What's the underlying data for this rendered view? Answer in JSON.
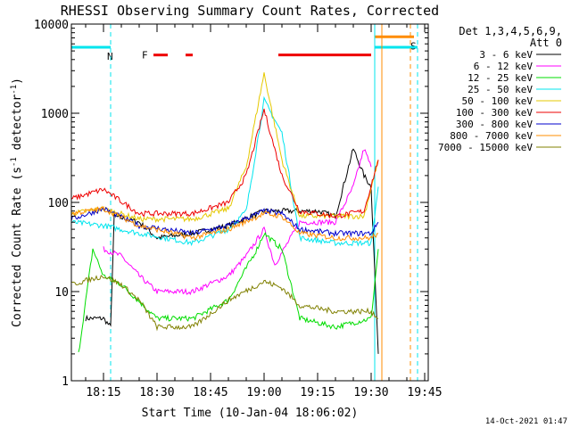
{
  "chart_data": {
    "type": "line",
    "title": "RHESSI Observing Summary Count Rates, Corrected",
    "xlabel": "Start Time (10-Jan-04 18:06:02)",
    "ylabel_main": "Corrected Count Rate (s",
    "ylabel_sup1": "-1",
    "ylabel_mid": " detector",
    "ylabel_sup2": "-1",
    "ylabel_end": ")",
    "y_scale": "log",
    "ylim": [
      1,
      10000
    ],
    "xlim": [
      "18:06",
      "19:46"
    ],
    "x_ticks": [
      "18:15",
      "18:30",
      "18:45",
      "19:00",
      "19:15",
      "19:30",
      "19:45"
    ],
    "y_ticks": [
      "1",
      "10",
      "100",
      "1000",
      "10000"
    ],
    "legend_header": [
      "Det 1,3,4,5,6,9,",
      "Att 0"
    ],
    "legend_position": "right",
    "footer_date": "14-Oct-2021 01:47",
    "flags": [
      {
        "label": "N",
        "color": "#00e5ee",
        "from": "18:06",
        "to": "18:17",
        "level": 5500
      },
      {
        "label": "S",
        "color": "#ff8c00",
        "from": "19:31",
        "to": "19:42",
        "level": 7200
      },
      {
        "label": "",
        "color": "#00e5ee",
        "from": "19:31",
        "to": "19:43",
        "level": 5500
      }
    ],
    "flare_flag": {
      "label": "F",
      "color": "#ee0000",
      "level": 4500,
      "segments": [
        [
          "18:29",
          "18:33"
        ],
        [
          "18:38",
          "18:40"
        ],
        [
          "19:04",
          "19:30"
        ]
      ]
    },
    "vlines": [
      {
        "time": "18:17",
        "color": "#00e5ee",
        "style": "dashed"
      },
      {
        "time": "19:31",
        "color": "#00e5ee",
        "style": "solid"
      },
      {
        "time": "19:33",
        "color": "#ff8c00",
        "style": "solid"
      },
      {
        "time": "19:41",
        "color": "#ff8c00",
        "style": "dashed"
      },
      {
        "time": "19:43",
        "color": "#00e5ee",
        "style": "dashed"
      }
    ],
    "series": [
      {
        "name": "3 - 6 keV",
        "color": "#000000",
        "x": [
          "18:10",
          "18:15",
          "18:17",
          "18:18",
          "18:25",
          "18:30",
          "18:40",
          "18:50",
          "19:00",
          "19:05",
          "19:10",
          "19:15",
          "19:20",
          "19:25",
          "19:28",
          "19:30",
          "19:32"
        ],
        "y": [
          5,
          5,
          4,
          70,
          60,
          40,
          45,
          55,
          80,
          80,
          80,
          80,
          70,
          400,
          200,
          150,
          2
        ]
      },
      {
        "name": "6 - 12 keV",
        "color": "#ff00ff",
        "x": [
          "18:15",
          "18:20",
          "18:25",
          "18:30",
          "18:40",
          "18:50",
          "18:55",
          "19:00",
          "19:03",
          "19:10",
          "19:15",
          "19:20",
          "19:25",
          "19:28",
          "19:30"
        ],
        "y": [
          30,
          25,
          15,
          10,
          10,
          15,
          25,
          50,
          20,
          60,
          60,
          60,
          150,
          400,
          250
        ]
      },
      {
        "name": "12 - 25 keV",
        "color": "#00dd00",
        "x": [
          "18:08",
          "18:12",
          "18:15",
          "18:20",
          "18:30",
          "18:40",
          "18:50",
          "18:58",
          "19:00",
          "19:05",
          "19:10",
          "19:20",
          "19:30",
          "19:32"
        ],
        "y": [
          2,
          30,
          15,
          12,
          5,
          5,
          8,
          30,
          45,
          30,
          5,
          4,
          5,
          30
        ]
      },
      {
        "name": "25 - 50 keV",
        "color": "#00e5ee",
        "x": [
          "18:06",
          "18:15",
          "18:25",
          "18:40",
          "18:50",
          "18:55",
          "19:00",
          "19:05",
          "19:10",
          "19:20",
          "19:30",
          "19:32"
        ],
        "y": [
          60,
          55,
          45,
          35,
          50,
          80,
          1400,
          600,
          40,
          35,
          35,
          150
        ]
      },
      {
        "name": "50 - 100 keV",
        "color": "#e5c800",
        "x": [
          "18:06",
          "18:15",
          "18:25",
          "18:40",
          "18:50",
          "18:55",
          "19:00",
          "19:05",
          "19:10",
          "19:20",
          "19:28",
          "19:32"
        ],
        "y": [
          75,
          85,
          65,
          65,
          85,
          250,
          2800,
          300,
          70,
          70,
          70,
          300
        ]
      },
      {
        "name": "100 - 300 keV",
        "color": "#ee0000",
        "x": [
          "18:06",
          "18:15",
          "18:25",
          "18:40",
          "18:50",
          "18:55",
          "19:00",
          "19:05",
          "19:10",
          "19:20",
          "19:28",
          "19:32"
        ],
        "y": [
          110,
          140,
          75,
          75,
          100,
          200,
          1100,
          200,
          80,
          70,
          80,
          300
        ]
      },
      {
        "name": "300 - 800 keV",
        "color": "#0000cc",
        "x": [
          "18:06",
          "18:15",
          "18:25",
          "18:40",
          "18:50",
          "19:00",
          "19:05",
          "19:10",
          "19:20",
          "19:30",
          "19:32"
        ],
        "y": [
          65,
          85,
          55,
          45,
          55,
          80,
          75,
          50,
          45,
          45,
          60
        ]
      },
      {
        "name": "800 - 7000 keV",
        "color": "#ff8c00",
        "x": [
          "18:06",
          "18:15",
          "18:25",
          "18:40",
          "18:50",
          "19:00",
          "19:05",
          "19:10",
          "19:20",
          "19:30",
          "19:32"
        ],
        "y": [
          75,
          85,
          55,
          40,
          50,
          75,
          70,
          45,
          40,
          40,
          45
        ]
      },
      {
        "name": "7000 - 15000 keV",
        "color": "#808000",
        "x": [
          "18:06",
          "18:15",
          "18:20",
          "18:25",
          "18:30",
          "18:40",
          "18:50",
          "19:00",
          "19:05",
          "19:10",
          "19:20",
          "19:30",
          "19:32"
        ],
        "y": [
          12,
          15,
          12,
          8,
          4,
          4,
          8,
          13,
          11,
          7,
          6,
          6,
          5
        ]
      }
    ]
  }
}
